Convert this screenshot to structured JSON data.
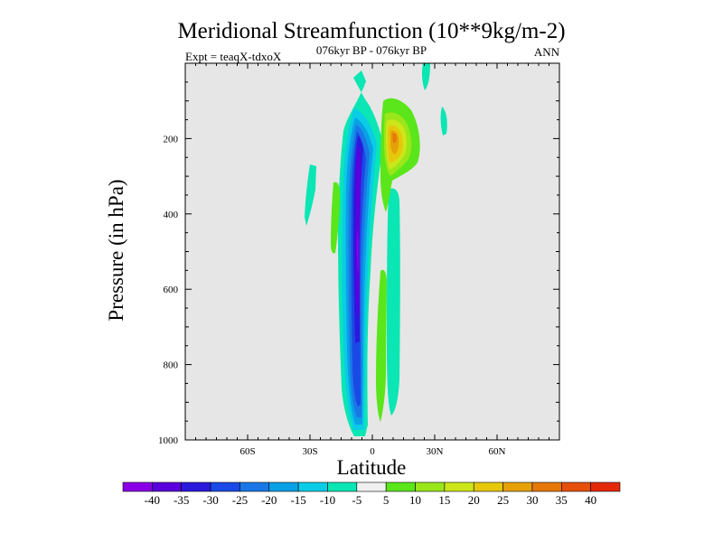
{
  "chart_data": {
    "type": "heatmap",
    "title": "Meridional Streamfunction (10**9kg/m-2)",
    "subtitle": "076kyr BP - 076kyr BP",
    "left_label": "Expt = teaqX-tdxoX",
    "right_label": "ANN",
    "xlabel": "Latitude",
    "ylabel": "Pressure (in hPa)",
    "xlim": [
      -90,
      90
    ],
    "ylim": [
      1000,
      0
    ],
    "x_ticks": [
      {
        "value": -60,
        "label": "60S"
      },
      {
        "value": -30,
        "label": "30S"
      },
      {
        "value": 0,
        "label": "0"
      },
      {
        "value": 30,
        "label": "30N"
      },
      {
        "value": 60,
        "label": "60N"
      }
    ],
    "y_ticks": [
      {
        "value": 200,
        "label": "200"
      },
      {
        "value": 400,
        "label": "400"
      },
      {
        "value": 600,
        "label": "600"
      },
      {
        "value": 800,
        "label": "800"
      },
      {
        "value": 1000,
        "label": "1000"
      }
    ],
    "background_color": "#e6e6e6",
    "colorbar": {
      "labels": [
        "-40",
        "-35",
        "-30",
        "-25",
        "-20",
        "-15",
        "-10",
        "-5",
        "5",
        "10",
        "15",
        "20",
        "25",
        "30",
        "35",
        "40"
      ],
      "colors": [
        "#8a00e6",
        "#5a00dc",
        "#2a1adc",
        "#1a4ae6",
        "#1a78e6",
        "#0aa0e6",
        "#0acce6",
        "#0ae6b4",
        "#f0f0f0",
        "#5ae61a",
        "#9ae61a",
        "#cce61a",
        "#e6c80a",
        "#e6a00a",
        "#e6780a",
        "#e6500a",
        "#e6280a"
      ]
    },
    "features": [
      {
        "name": "southern cell core",
        "lat": -7,
        "pressure": 500,
        "min_value": -40
      },
      {
        "name": "northern cell core",
        "lat": 6,
        "pressure": 200,
        "max_value": 30
      }
    ]
  }
}
